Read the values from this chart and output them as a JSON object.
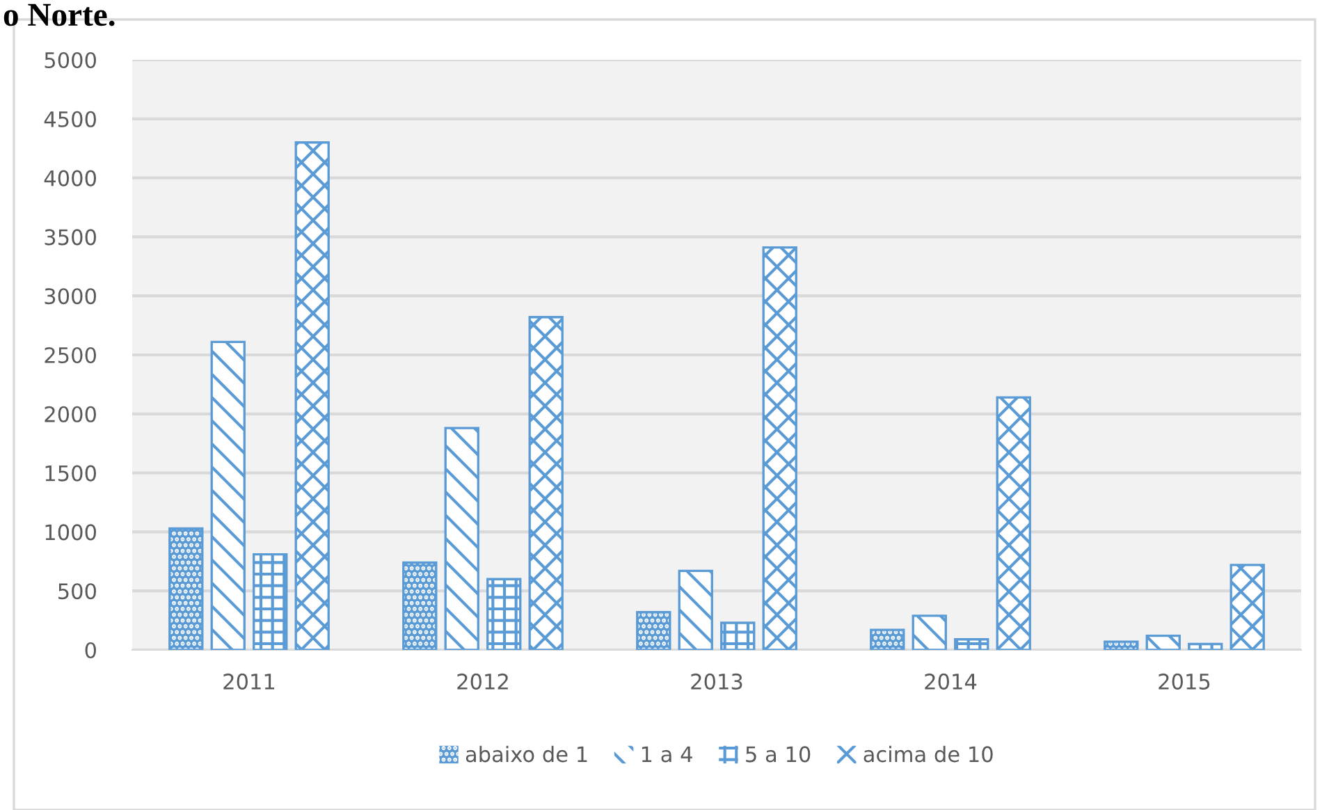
{
  "chart_data": {
    "type": "bar",
    "title": "o Norte.",
    "categories": [
      "2011",
      "2012",
      "2013",
      "2014",
      "2015"
    ],
    "series": [
      {
        "name": "abaixo de 1",
        "color": "#5b9bd5",
        "values": [
          1030,
          740,
          320,
          170,
          70
        ]
      },
      {
        "name": "1 a 4",
        "color": "#5b9bd5",
        "values": [
          2610,
          1880,
          670,
          290,
          120
        ]
      },
      {
        "name": "5 a 10",
        "color": "#5b9bd5",
        "values": [
          810,
          600,
          230,
          90,
          50
        ]
      },
      {
        "name": "acima de 10",
        "color": "#5b9bd5",
        "values": [
          4300,
          2820,
          3410,
          2140,
          720
        ]
      }
    ],
    "ylim": [
      0,
      5000
    ],
    "yticks": [
      0,
      500,
      1000,
      1500,
      2000,
      2500,
      3000,
      3500,
      4000,
      4500,
      5000
    ],
    "grid": "y",
    "legend": "bottom"
  }
}
